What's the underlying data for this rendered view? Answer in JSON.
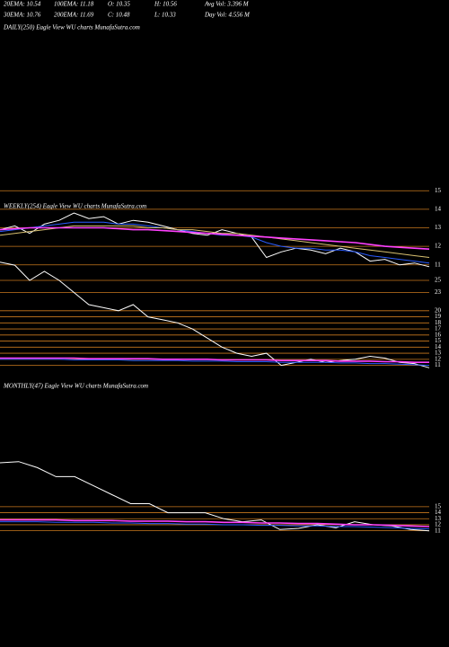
{
  "header": {
    "row1": [
      "20EMA: 10.54",
      "100EMA: 11.18",
      "O: 10.35",
      "H: 10.56",
      "Avg Vol: 3.396  M"
    ],
    "row2": [
      "30EMA: 10.76",
      "200EMA: 11.69",
      "C: 10.48",
      "L: 10.33",
      "Day Vol: 4.556  M"
    ],
    "daily_title": "DAILY(250) Eagle  View  WU charts MunafaSutra.com"
  },
  "chart_data": [
    {
      "type": "line",
      "title": "WEEKLY(254) Eagle  View  WU charts MunafaSutra.com",
      "ylim": [
        10.65,
        15.35
      ],
      "yticks": [
        15,
        14,
        13,
        12,
        11
      ],
      "grid": true,
      "grid_color": "#c8781e",
      "series": [
        {
          "name": "Price",
          "color": "#ffffff",
          "values": [
            12.9,
            13.1,
            12.7,
            13.2,
            13.4,
            13.8,
            13.5,
            13.6,
            13.2,
            13.4,
            13.3,
            13.1,
            12.9,
            12.7,
            12.6,
            12.9,
            12.7,
            12.5,
            11.4,
            11.7,
            11.9,
            11.8,
            11.6,
            11.9,
            11.7,
            11.2,
            11.3,
            11.0,
            11.1,
            10.9
          ]
        },
        {
          "name": "EMA Blue",
          "color": "#2a5cff",
          "values": [
            12.8,
            12.9,
            13.0,
            13.1,
            13.2,
            13.3,
            13.3,
            13.3,
            13.2,
            13.2,
            13.1,
            13.0,
            12.9,
            12.8,
            12.7,
            12.6,
            12.6,
            12.5,
            12.2,
            12.0,
            11.9,
            11.9,
            11.8,
            11.8,
            11.7,
            11.5,
            11.4,
            11.3,
            11.2,
            11.1
          ]
        },
        {
          "name": "EMA Yellow",
          "color": "#d8c070",
          "values": [
            12.6,
            12.7,
            12.8,
            12.9,
            13.0,
            13.1,
            13.1,
            13.1,
            13.1,
            13.1,
            13.0,
            13.0,
            12.9,
            12.9,
            12.8,
            12.7,
            12.7,
            12.6,
            12.5,
            12.4,
            12.3,
            12.2,
            12.1,
            12.0,
            11.9,
            11.8,
            11.7,
            11.6,
            11.5,
            11.4
          ]
        },
        {
          "name": "EMA Magenta",
          "color": "#ff40ff",
          "values": [
            12.9,
            12.95,
            13.0,
            13.0,
            13.0,
            13.0,
            13.0,
            13.0,
            12.95,
            12.9,
            12.9,
            12.85,
            12.8,
            12.75,
            12.7,
            12.65,
            12.6,
            12.55,
            12.5,
            12.45,
            12.4,
            12.35,
            12.3,
            12.25,
            12.2,
            12.1,
            12.0,
            11.95,
            11.9,
            11.85
          ]
        }
      ]
    },
    {
      "type": "line",
      "ylim": [
        10.2,
        29
      ],
      "yticks": [
        25,
        23,
        20,
        19,
        18,
        17,
        16,
        15,
        14,
        13,
        12,
        11
      ],
      "grid": true,
      "grid_color": "#c8781e",
      "series": [
        {
          "name": "Price",
          "color": "#ffffff",
          "values": [
            28,
            27.5,
            25,
            26.5,
            25,
            23,
            21,
            20.5,
            20,
            21,
            19,
            18.5,
            18,
            17,
            15.5,
            14,
            13,
            12.5,
            13,
            11,
            11.5,
            12,
            11.5,
            11.8,
            12,
            12.5,
            12.2,
            11.5,
            11.3,
            10.6
          ]
        },
        {
          "name": "EMA Blue",
          "color": "#2a5cff",
          "values": [
            12.0,
            12.0,
            12.0,
            12.0,
            12.0,
            11.9,
            11.9,
            11.9,
            11.9,
            11.8,
            11.8,
            11.8,
            11.8,
            11.7,
            11.7,
            11.7,
            11.6,
            11.6,
            11.6,
            11.5,
            11.5,
            11.5,
            11.5,
            11.4,
            11.4,
            11.3,
            11.3,
            11.2,
            11.1,
            11.0
          ]
        },
        {
          "name": "EMA Magenta",
          "color": "#ff40ff",
          "values": [
            12.2,
            12.2,
            12.2,
            12.2,
            12.2,
            12.2,
            12.1,
            12.1,
            12.1,
            12.1,
            12.1,
            12.0,
            12.0,
            12.0,
            12.0,
            11.9,
            11.9,
            11.9,
            11.9,
            11.8,
            11.8,
            11.8,
            11.8,
            11.7,
            11.7,
            11.7,
            11.6,
            11.6,
            11.5,
            11.5
          ]
        }
      ]
    },
    {
      "type": "line",
      "title": "MONTHLY(47) Eagle  View  WU charts MunafaSutra.com",
      "ylim": [
        10.5,
        35
      ],
      "yticks": [
        15,
        14,
        13,
        12,
        11
      ],
      "grid": true,
      "grid_color": "#c8781e",
      "series": [
        {
          "name": "Price",
          "color": "#ffffff",
          "values": [
            22.3,
            22.5,
            21.5,
            20,
            20,
            18.5,
            17,
            15.5,
            15.5,
            14,
            14,
            14,
            13,
            12.5,
            12.8,
            11.2,
            11.4,
            12,
            11.5,
            12.5,
            12,
            11.8,
            11.2,
            11.0
          ]
        },
        {
          "name": "EMA Blue",
          "color": "#2a5cff",
          "values": [
            12.5,
            12.5,
            12.5,
            12.4,
            12.4,
            12.4,
            12.3,
            12.3,
            12.2,
            12.2,
            12.1,
            12.1,
            12.0,
            12.0,
            11.9,
            11.9,
            11.8,
            11.8,
            11.7,
            11.7,
            11.6,
            11.5,
            11.4,
            11.3
          ]
        },
        {
          "name": "EMA Magenta",
          "color": "#ff40ff",
          "values": [
            12.8,
            12.8,
            12.8,
            12.8,
            12.7,
            12.7,
            12.7,
            12.6,
            12.6,
            12.6,
            12.5,
            12.5,
            12.4,
            12.4,
            12.3,
            12.3,
            12.2,
            12.2,
            12.1,
            12.0,
            12.0,
            11.9,
            11.8,
            11.7
          ]
        }
      ]
    }
  ]
}
